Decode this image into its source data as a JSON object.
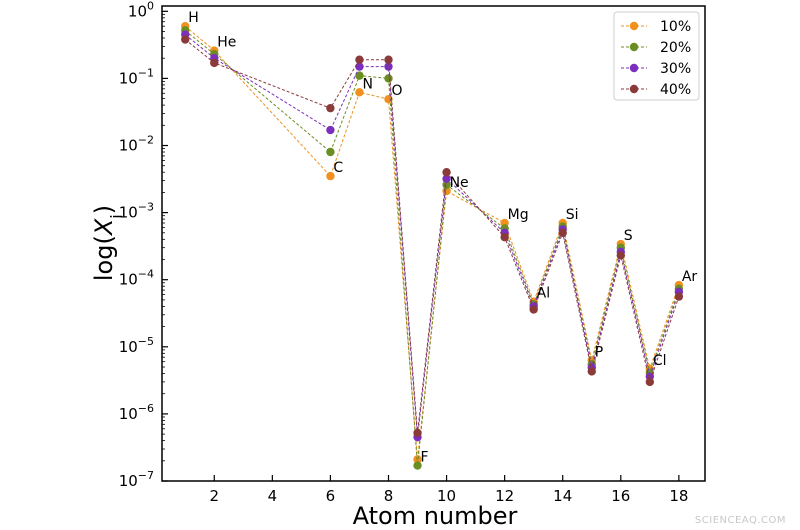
{
  "chart_data": {
    "type": "line",
    "xlabel": "Atom number",
    "ylabel": "log(X_i)",
    "yscale": "log",
    "xlim": [
      0.2,
      18.9
    ],
    "ylim": [
      1e-07,
      1.2
    ],
    "x_ticks": [
      2,
      4,
      6,
      8,
      10,
      12,
      14,
      16,
      18
    ],
    "y_ticks": [
      {
        "value": 1e-07,
        "base": "10",
        "exp": "−7"
      },
      {
        "value": 1e-06,
        "base": "10",
        "exp": "−6"
      },
      {
        "value": 1e-05,
        "base": "10",
        "exp": "−5"
      },
      {
        "value": 0.0001,
        "base": "10",
        "exp": "−4"
      },
      {
        "value": 0.001,
        "base": "10",
        "exp": "−3"
      },
      {
        "value": 0.01,
        "base": "10",
        "exp": "−2"
      },
      {
        "value": 0.1,
        "base": "10",
        "exp": "−1"
      },
      {
        "value": 1,
        "base": "10",
        "exp": "0"
      }
    ],
    "x": [
      1,
      2,
      6,
      7,
      8,
      9,
      10,
      12,
      13,
      14,
      15,
      16,
      17,
      18
    ],
    "point_labels": [
      {
        "text": "H",
        "x": 1,
        "y": 0.6
      },
      {
        "text": "He",
        "x": 2,
        "y": 0.26
      },
      {
        "text": "C",
        "x": 6,
        "y": 0.0035
      },
      {
        "text": "N",
        "x": 7,
        "y": 0.062
      },
      {
        "text": "O",
        "x": 8,
        "y": 0.049
      },
      {
        "text": "F",
        "x": 9,
        "y": 1.7e-07
      },
      {
        "text": "Ne",
        "x": 10,
        "y": 0.0021
      },
      {
        "text": "Mg",
        "x": 12,
        "y": 0.0007
      },
      {
        "text": "Al",
        "x": 13,
        "y": 4.7e-05
      },
      {
        "text": "Si",
        "x": 14,
        "y": 0.0007
      },
      {
        "text": "P",
        "x": 15,
        "y": 6.3e-06
      },
      {
        "text": "S",
        "x": 16,
        "y": 0.00034
      },
      {
        "text": "Cl",
        "x": 17,
        "y": 4.7e-06
      },
      {
        "text": "Ar",
        "x": 18,
        "y": 8.3e-05
      }
    ],
    "legend_position": "top-right",
    "grid": false,
    "series": [
      {
        "name": "10%",
        "color": "#f0901e",
        "values": [
          0.6,
          0.26,
          0.0035,
          0.062,
          0.049,
          2.1e-07,
          0.0021,
          0.0007,
          4.7e-05,
          0.0007,
          6.3e-06,
          0.00034,
          4.7e-06,
          8.3e-05
        ]
      },
      {
        "name": "20%",
        "color": "#6b8e23",
        "values": [
          0.52,
          0.23,
          0.008,
          0.11,
          0.1,
          1.7e-07,
          0.0026,
          0.00058,
          4.3e-05,
          0.00062,
          5.5e-06,
          0.0003,
          4.1e-06,
          7.3e-05
        ]
      },
      {
        "name": "30%",
        "color": "#7b2fbe",
        "values": [
          0.45,
          0.2,
          0.017,
          0.15,
          0.15,
          4.5e-07,
          0.0032,
          0.0005,
          4e-05,
          0.00056,
          4.9e-06,
          0.00026,
          3.6e-06,
          6.6e-05
        ]
      },
      {
        "name": "40%",
        "color": "#8b3a3a",
        "values": [
          0.38,
          0.17,
          0.036,
          0.19,
          0.19,
          5.2e-07,
          0.004,
          0.00043,
          3.6e-05,
          0.0005,
          4.3e-06,
          0.00023,
          3e-06,
          5.6e-05
        ]
      }
    ]
  },
  "watermark": "SCIENCEAQ.COM"
}
